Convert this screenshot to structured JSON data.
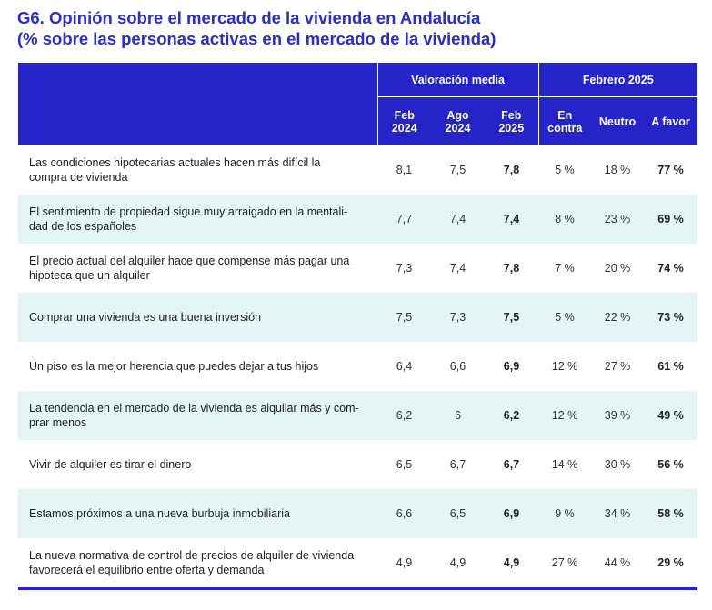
{
  "title_line1": "G6. Opinión sobre el mercado de la vivienda en Andalucía",
  "title_line2": "(% sobre las personas activas en el mercado de la vivienda)",
  "header": {
    "group_valoracion": "Valoración media",
    "group_febrero": "Febrero 2025",
    "columns": [
      [
        "Feb",
        "2024"
      ],
      [
        "Ago",
        "2024"
      ],
      [
        "Feb",
        "2025"
      ],
      [
        "En",
        "contra"
      ],
      [
        "Neutro"
      ],
      [
        "A favor"
      ]
    ]
  },
  "rows": [
    {
      "statement": [
        "Las condiciones hipotecarias actuales hacen más difícil la",
        "compra de vivienda"
      ],
      "values": [
        "8,1",
        "7,5",
        "7,8",
        "5 %",
        "18 %",
        "77 %"
      ]
    },
    {
      "statement": [
        "El sentimiento de propiedad sigue muy arraigado en la mentali-",
        "dad de los españoles"
      ],
      "values": [
        "7,7",
        "7,4",
        "7,4",
        "8 %",
        "23 %",
        "69 %"
      ]
    },
    {
      "statement": [
        "El precio actual del alquiler hace que compense más pagar una",
        "hipoteca que un alquiler"
      ],
      "values": [
        "7,3",
        "7,4",
        "7,8",
        "7 %",
        "20 %",
        "74 %"
      ]
    },
    {
      "statement": [
        "Comprar una vivienda es una buena inversión"
      ],
      "values": [
        "7,5",
        "7,3",
        "7,5",
        "5 %",
        "22 %",
        "73 %"
      ]
    },
    {
      "statement": [
        "Un piso es la mejor herencia que puedes dejar a tus hijos"
      ],
      "values": [
        "6,4",
        "6,6",
        "6,9",
        "12 %",
        "27 %",
        "61 %"
      ]
    },
    {
      "statement": [
        "La tendencia en el mercado de la vivienda es alquilar más y com-",
        "prar menos"
      ],
      "values": [
        "6,2",
        "6",
        "6,2",
        "12 %",
        "39 %",
        "49 %"
      ]
    },
    {
      "statement": [
        "Vivir de alquiler es tirar el dinero"
      ],
      "values": [
        "6,5",
        "6,7",
        "6,7",
        "14 %",
        "30 %",
        "56 %"
      ]
    },
    {
      "statement": [
        "Estamos próximos a una nueva burbuja inmobiliaria"
      ],
      "values": [
        "6,6",
        "6,5",
        "6,9",
        "9 %",
        "34 %",
        "58 %"
      ]
    },
    {
      "statement": [
        "La nueva normativa de control de precios de alquiler de vivienda",
        "favorecerá el equilibrio entre oferta y demanda"
      ],
      "values": [
        "4,9",
        "4,9",
        "4,9",
        "27 %",
        "44 %",
        "29 %"
      ]
    }
  ]
}
